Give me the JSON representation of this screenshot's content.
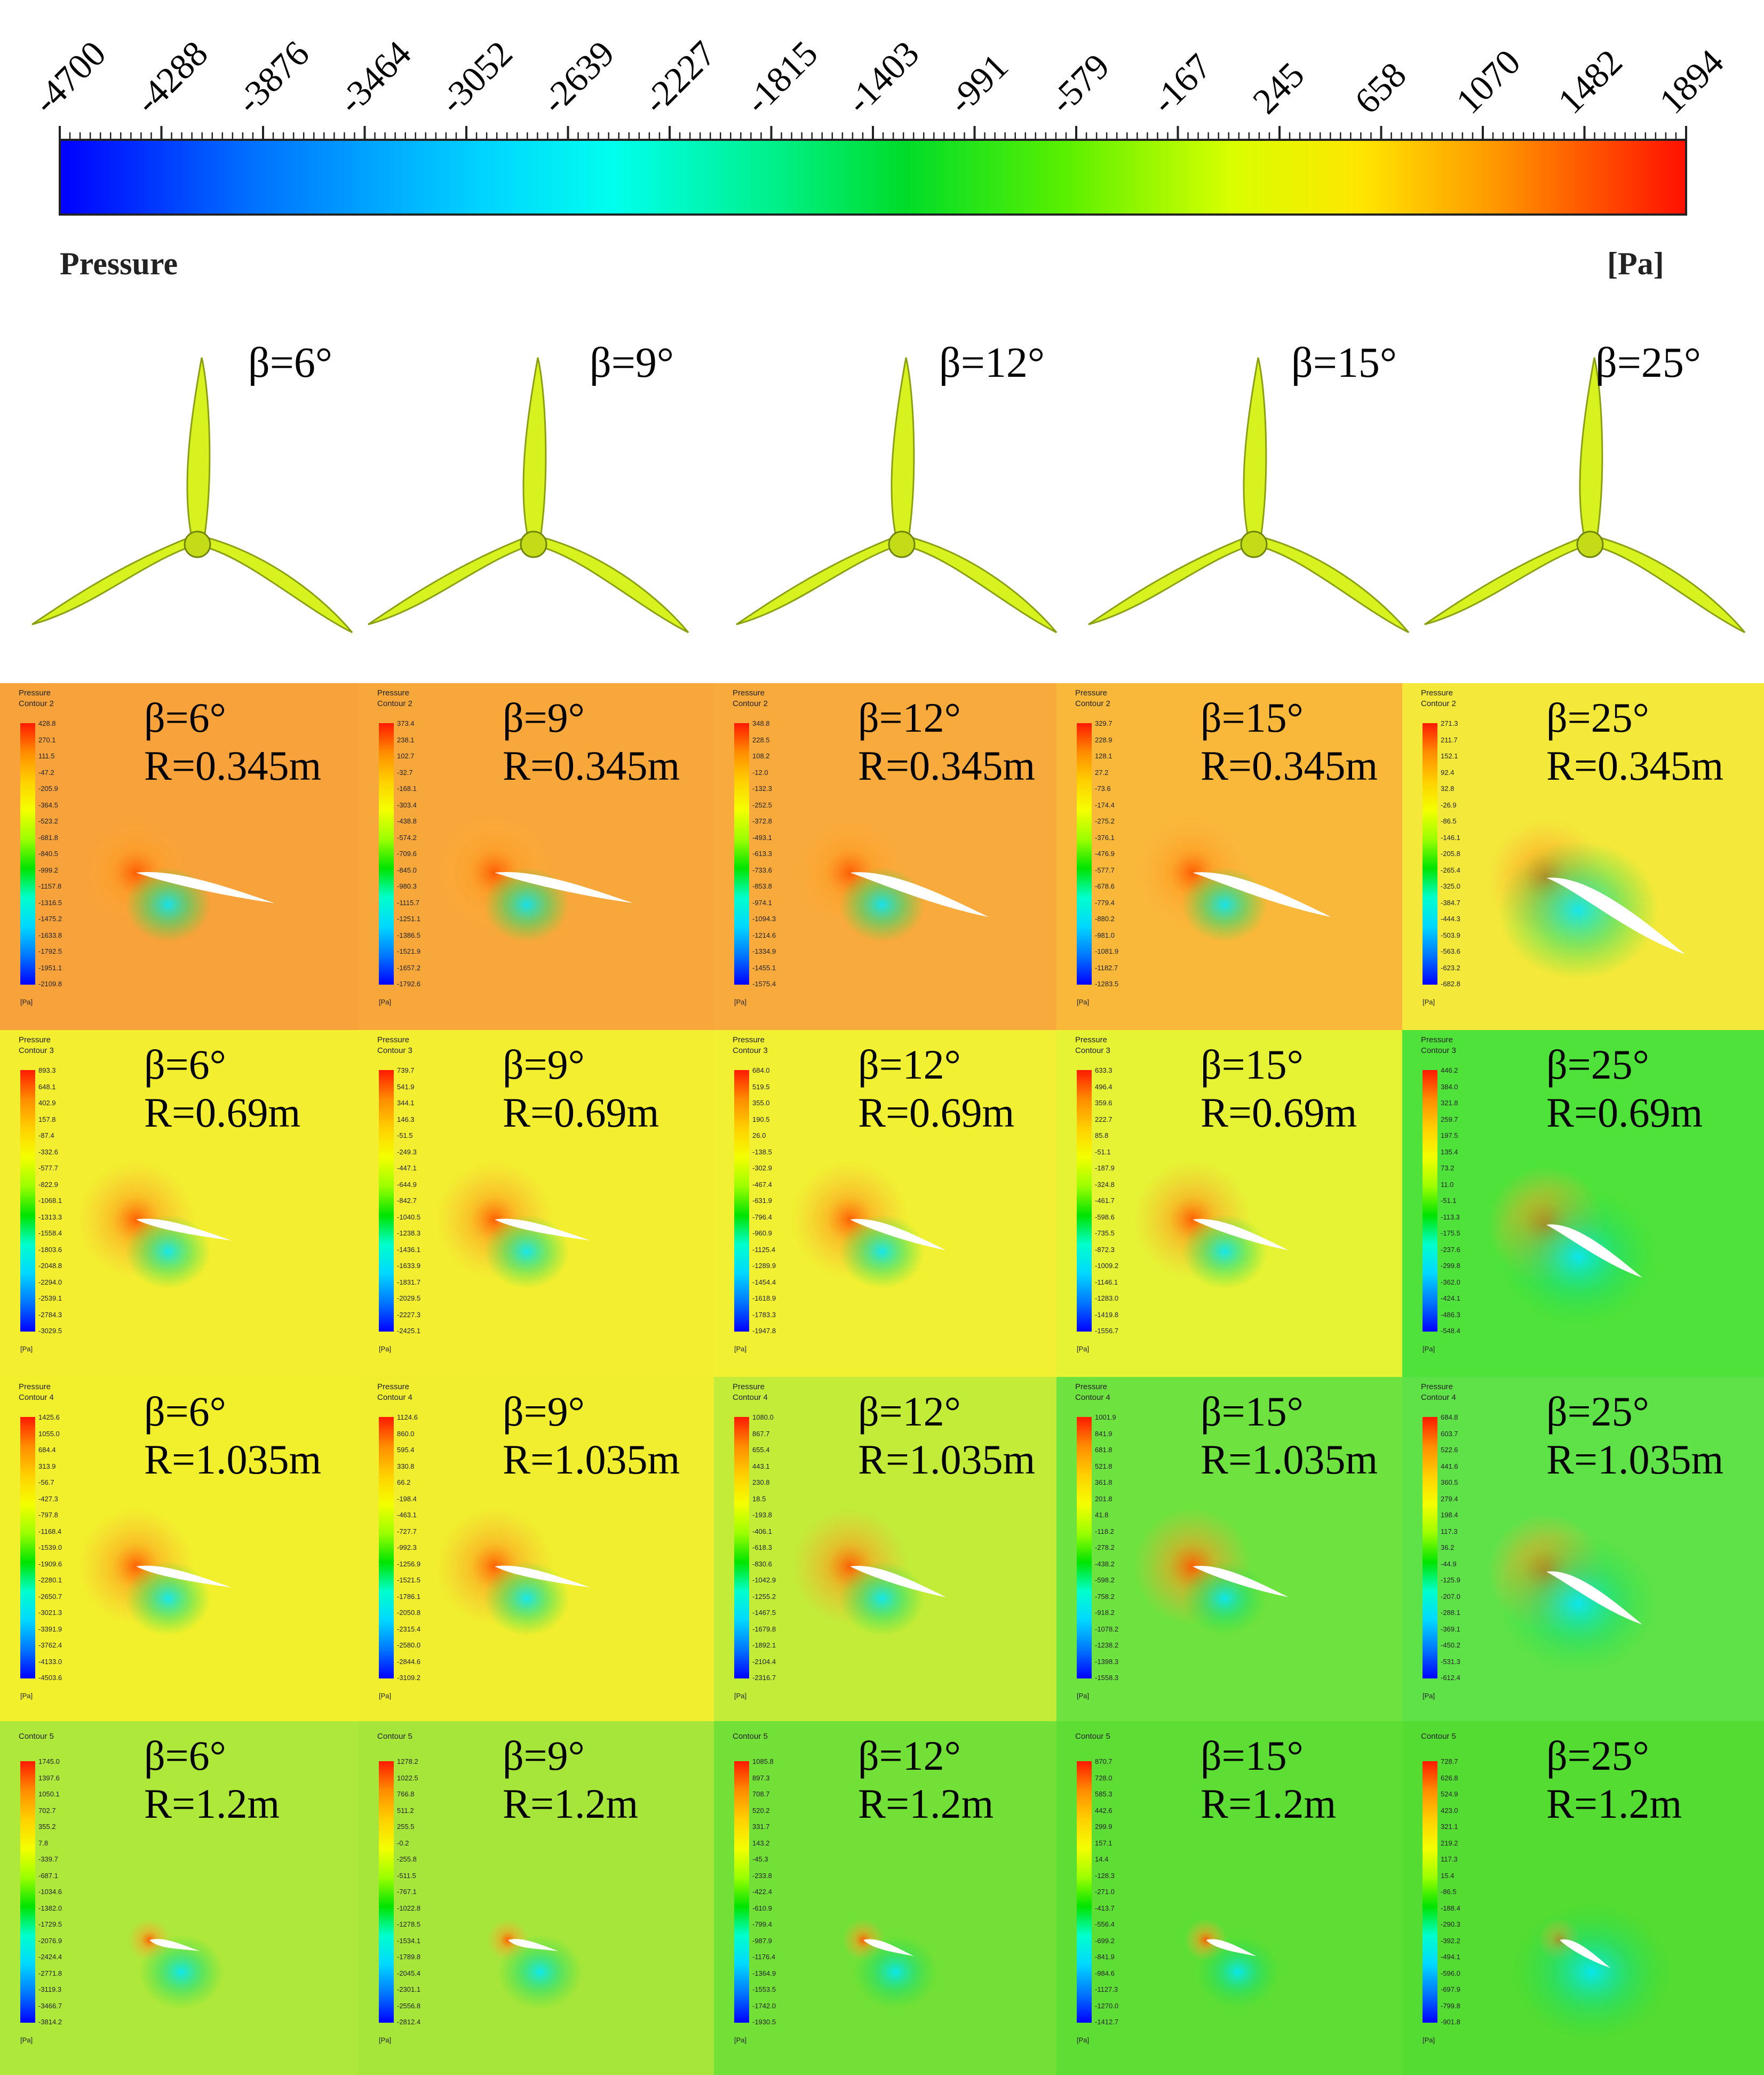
{
  "colorbar": {
    "ticks": [
      "-4700",
      "-4288",
      "-3876",
      "-3464",
      "-3052",
      "-2639",
      "-2227",
      "-1815",
      "-1403",
      "-991",
      "-579",
      "-167",
      "245",
      "658",
      "1070",
      "1482",
      "1894"
    ],
    "variable": "Pressure",
    "unit": "[Pa]"
  },
  "rotors": [
    {
      "label": "β=6°"
    },
    {
      "label": "β=9°"
    },
    {
      "label": "β=12°"
    },
    {
      "label": "β=15°"
    },
    {
      "label": "β=25°"
    }
  ],
  "contour_rows": [
    {
      "radius": "R=0.345m",
      "legend_title": "Pressure",
      "contour": "Contour 2",
      "panels": [
        {
          "beta": "β=6°",
          "bg": "#f7a23a",
          "values": [
            "428.8",
            "270.1",
            "111.5",
            "-47.2",
            "-205.9",
            "-364.5",
            "-523.2",
            "-681.8",
            "-840.5",
            "-999.2",
            "-1157.8",
            "-1316.5",
            "-1475.2",
            "-1633.8",
            "-1792.5",
            "-1951.1",
            "-2109.8"
          ]
        },
        {
          "beta": "β=9°",
          "bg": "#f8a83a",
          "values": [
            "373.4",
            "238.1",
            "102.7",
            "-32.7",
            "-168.1",
            "-303.4",
            "-438.8",
            "-574.2",
            "-709.6",
            "-845.0",
            "-980.3",
            "-1115.7",
            "-1251.1",
            "-1386.5",
            "-1521.9",
            "-1657.2",
            "-1792.6"
          ]
        },
        {
          "beta": "β=12°",
          "bg": "#f8aa3c",
          "values": [
            "348.8",
            "228.5",
            "108.2",
            "-12.0",
            "-132.3",
            "-252.5",
            "-372.8",
            "-493.1",
            "-613.3",
            "-733.6",
            "-853.8",
            "-974.1",
            "-1094.3",
            "-1214.6",
            "-1334.9",
            "-1455.1",
            "-1575.4"
          ]
        },
        {
          "beta": "β=15°",
          "bg": "#f9b83a",
          "values": [
            "329.7",
            "228.9",
            "128.1",
            "27.2",
            "-73.6",
            "-174.4",
            "-275.2",
            "-376.1",
            "-476.9",
            "-577.7",
            "-678.6",
            "-779.4",
            "-880.2",
            "-981.0",
            "-1081.9",
            "-1182.7",
            "-1283.5"
          ]
        },
        {
          "beta": "β=25°",
          "bg": "#f4e83a",
          "values": [
            "271.3",
            "211.7",
            "152.1",
            "92.4",
            "32.8",
            "-26.9",
            "-86.5",
            "-146.1",
            "-205.8",
            "-265.4",
            "-325.0",
            "-384.7",
            "-444.3",
            "-503.9",
            "-563.6",
            "-623.2",
            "-682.8"
          ]
        }
      ]
    },
    {
      "radius": "R=0.69m",
      "legend_title": "Pressure",
      "contour": "Contour 3",
      "panels": [
        {
          "beta": "β=6°",
          "bg": "#f3ee30",
          "values": [
            "893.3",
            "648.1",
            "402.9",
            "157.8",
            "-87.4",
            "-332.6",
            "-577.7",
            "-822.9",
            "-1068.1",
            "-1313.3",
            "-1558.4",
            "-1803.6",
            "-2048.8",
            "-2294.0",
            "-2539.1",
            "-2784.3",
            "-3029.5"
          ]
        },
        {
          "beta": "β=9°",
          "bg": "#f3ee30",
          "values": [
            "739.7",
            "541.9",
            "344.1",
            "146.3",
            "-51.5",
            "-249.3",
            "-447.1",
            "-644.9",
            "-842.7",
            "-1040.5",
            "-1238.3",
            "-1436.1",
            "-1633.9",
            "-1831.7",
            "-2029.5",
            "-2227.3",
            "-2425.1"
          ]
        },
        {
          "beta": "β=12°",
          "bg": "#f1f032",
          "values": [
            "684.0",
            "519.5",
            "355.0",
            "190.5",
            "26.0",
            "-138.5",
            "-302.9",
            "-467.4",
            "-631.9",
            "-796.4",
            "-960.9",
            "-1125.4",
            "-1289.9",
            "-1454.4",
            "-1618.9",
            "-1783.3",
            "-1947.8"
          ]
        },
        {
          "beta": "β=15°",
          "bg": "#e6f234",
          "values": [
            "633.3",
            "496.4",
            "359.6",
            "222.7",
            "85.8",
            "-51.1",
            "-187.9",
            "-324.8",
            "-461.7",
            "-598.6",
            "-735.5",
            "-872.3",
            "-1009.2",
            "-1146.1",
            "-1283.0",
            "-1419.8",
            "-1556.7"
          ]
        },
        {
          "beta": "β=25°",
          "bg": "#4fe23a",
          "values": [
            "446.2",
            "384.0",
            "321.8",
            "259.7",
            "197.5",
            "135.4",
            "73.2",
            "11.0",
            "-51.1",
            "-113.3",
            "-175.5",
            "-237.6",
            "-299.8",
            "-362.0",
            "-424.1",
            "-486.3",
            "-548.4"
          ]
        }
      ]
    },
    {
      "radius": "R=1.035m",
      "legend_title": "Pressure",
      "contour": "Contour 4",
      "panels": [
        {
          "beta": "β=6°",
          "bg": "#f2f02c",
          "values": [
            "1425.6",
            "1055.0",
            "684.4",
            "313.9",
            "-56.7",
            "-427.3",
            "-797.8",
            "-1168.4",
            "-1539.0",
            "-1909.6",
            "-2280.1",
            "-2650.7",
            "-3021.3",
            "-3391.9",
            "-3762.4",
            "-4133.0",
            "-4503.6"
          ]
        },
        {
          "beta": "β=9°",
          "bg": "#f0ee2e",
          "values": [
            "1124.6",
            "860.0",
            "595.4",
            "330.8",
            "66.2",
            "-198.4",
            "-463.1",
            "-727.7",
            "-992.3",
            "-1256.9",
            "-1521.5",
            "-1786.1",
            "-2050.8",
            "-2315.4",
            "-2580.0",
            "-2844.6",
            "-3109.2"
          ]
        },
        {
          "beta": "β=12°",
          "bg": "#c2ec38",
          "values": [
            "1080.0",
            "867.7",
            "655.4",
            "443.1",
            "230.8",
            "18.5",
            "-193.8",
            "-406.1",
            "-618.3",
            "-830.6",
            "-1042.9",
            "-1255.2",
            "-1467.5",
            "-1679.8",
            "-1892.1",
            "-2104.4",
            "-2316.7"
          ]
        },
        {
          "beta": "β=15°",
          "bg": "#6ee23e",
          "values": [
            "1001.9",
            "841.9",
            "681.8",
            "521.8",
            "361.8",
            "201.8",
            "41.8",
            "-118.2",
            "-278.2",
            "-438.2",
            "-598.2",
            "-758.2",
            "-918.2",
            "-1078.2",
            "-1238.2",
            "-1398.3",
            "-1558.3"
          ]
        },
        {
          "beta": "β=25°",
          "bg": "#5fe248",
          "values": [
            "684.8",
            "603.7",
            "522.6",
            "441.6",
            "360.5",
            "279.4",
            "198.4",
            "117.3",
            "36.2",
            "-44.9",
            "-125.9",
            "-207.0",
            "-288.1",
            "-369.1",
            "-450.2",
            "-531.3",
            "-612.4"
          ]
        }
      ]
    },
    {
      "radius": "R=1.2m",
      "legend_title": "",
      "contour": "Contour 5",
      "panels": [
        {
          "beta": "β=6°",
          "bg": "#aee83a",
          "values": [
            "1745.0",
            "1397.6",
            "1050.1",
            "702.7",
            "355.2",
            "7.8",
            "-339.7",
            "-687.1",
            "-1034.6",
            "-1382.0",
            "-1729.5",
            "-2076.9",
            "-2424.4",
            "-2771.8",
            "-3119.3",
            "-3466.7",
            "-3814.2"
          ]
        },
        {
          "beta": "β=9°",
          "bg": "#a6e63a",
          "values": [
            "1278.2",
            "1022.5",
            "766.8",
            "511.2",
            "255.5",
            "-0.2",
            "-255.8",
            "-511.5",
            "-767.1",
            "-1022.8",
            "-1278.5",
            "-1534.1",
            "-1789.8",
            "-2045.4",
            "-2301.1",
            "-2556.8",
            "-2812.4"
          ]
        },
        {
          "beta": "β=12°",
          "bg": "#72e036",
          "values": [
            "1085.8",
            "897.3",
            "708.7",
            "520.2",
            "331.7",
            "143.2",
            "-45.3",
            "-233.8",
            "-422.4",
            "-610.9",
            "-799.4",
            "-987.9",
            "-1176.4",
            "-1364.9",
            "-1553.5",
            "-1742.0",
            "-1930.5"
          ]
        },
        {
          "beta": "β=15°",
          "bg": "#5ede34",
          "values": [
            "870.7",
            "728.0",
            "585.3",
            "442.6",
            "299.9",
            "157.1",
            "14.4",
            "-128.3",
            "-271.0",
            "-413.7",
            "-556.4",
            "-699.2",
            "-841.9",
            "-984.6",
            "-1127.3",
            "-1270.0",
            "-1412.7"
          ]
        },
        {
          "beta": "β=25°",
          "bg": "#54dc32",
          "values": [
            "728.7",
            "626.8",
            "524.9",
            "423.0",
            "321.1",
            "219.2",
            "117.3",
            "15.4",
            "-86.5",
            "-188.4",
            "-290.3",
            "-392.2",
            "-494.1",
            "-596.0",
            "-697.9",
            "-799.8",
            "-901.8"
          ]
        }
      ]
    }
  ],
  "legend_unit": "[Pa]"
}
